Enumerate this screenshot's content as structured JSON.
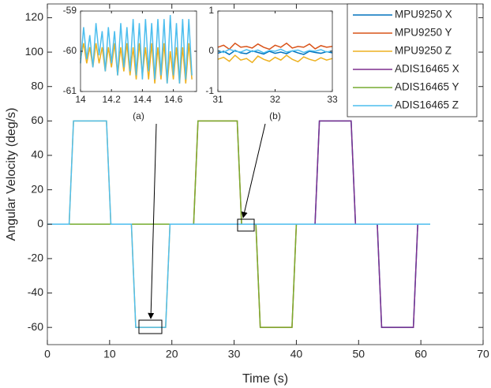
{
  "chart_data": [
    {
      "type": "line",
      "xlabel": "Time (s)",
      "ylabel": "Angular Velocity (deg/s)",
      "xlim": [
        0,
        70
      ],
      "ylim": [
        -70,
        128
      ],
      "xticks": [
        0,
        10,
        20,
        30,
        40,
        50,
        60,
        70
      ],
      "yticks": [
        -60,
        -40,
        -20,
        0,
        20,
        40,
        60,
        80,
        100,
        120
      ],
      "legend": "upper right",
      "x": [
        0,
        3.5,
        4.2,
        9.5,
        10.2,
        13.5,
        14.2,
        19,
        19.7,
        23.5,
        24.2,
        30.5,
        31.2,
        33.5,
        34.2,
        39.3,
        40,
        43,
        43.7,
        48.8,
        49.5,
        53,
        53.7,
        58.8,
        59.5,
        61.5
      ],
      "series": [
        {
          "name": "MPU9250 X",
          "color": "#0072bd",
          "values": [
            0,
            0,
            0,
            0,
            0,
            0,
            0,
            0,
            0,
            0,
            0,
            0,
            0,
            0,
            0,
            0,
            0,
            0,
            60,
            60,
            0,
            0,
            -60,
            -60,
            0,
            0
          ]
        },
        {
          "name": "MPU9250 Y",
          "color": "#d95319",
          "values": [
            0,
            0,
            0,
            0,
            0,
            0,
            0,
            0,
            0,
            0,
            60,
            60,
            0,
            0,
            -60,
            -60,
            0,
            0,
            0,
            0,
            0,
            0,
            0,
            0,
            0,
            0
          ]
        },
        {
          "name": "MPU9250 Z",
          "color": "#edb120",
          "values": [
            0,
            0,
            60,
            60,
            0,
            0,
            -60,
            -60,
            0,
            0,
            0,
            0,
            0,
            0,
            0,
            0,
            0,
            0,
            0,
            0,
            0,
            0,
            0,
            0,
            0,
            0
          ]
        },
        {
          "name": "ADIS16465 X",
          "color": "#7e2f8e",
          "values": [
            0,
            0,
            0,
            0,
            0,
            0,
            0,
            0,
            0,
            0,
            0,
            0,
            0,
            0,
            0,
            0,
            0,
            0,
            60,
            60,
            0,
            0,
            -60,
            -60,
            0,
            0
          ]
        },
        {
          "name": "ADIS16465 Y",
          "color": "#77ac30",
          "values": [
            0,
            0,
            0,
            0,
            0,
            0,
            0,
            0,
            0,
            0,
            60,
            60,
            0,
            0,
            -60,
            -60,
            0,
            0,
            0,
            0,
            0,
            0,
            0,
            0,
            0,
            0
          ]
        },
        {
          "name": "ADIS16465 Z",
          "color": "#4dbeee",
          "values": [
            0,
            0,
            60,
            60,
            0,
            0,
            -60,
            -60,
            0,
            0,
            0,
            0,
            0,
            0,
            0,
            0,
            0,
            0,
            0,
            0,
            0,
            0,
            0,
            0,
            0,
            0
          ]
        }
      ]
    },
    {
      "type": "line",
      "label": "(a)",
      "xlim": [
        14,
        14.75
      ],
      "ylim": [
        -61,
        -59
      ],
      "xticks": [
        14,
        14.2,
        14.4,
        14.6
      ],
      "yticks": [
        -61,
        -60,
        -59
      ],
      "x": [
        14,
        14.02,
        14.04,
        14.06,
        14.08,
        14.1,
        14.12,
        14.14,
        14.16,
        14.18,
        14.2,
        14.22,
        14.24,
        14.26,
        14.28,
        14.3,
        14.32,
        14.34,
        14.36,
        14.38,
        14.4,
        14.42,
        14.44,
        14.46,
        14.48,
        14.5,
        14.52,
        14.54,
        14.56,
        14.58,
        14.6,
        14.62,
        14.64,
        14.66,
        14.68,
        14.7,
        14.72
      ],
      "series": [
        {
          "color": "#edb120",
          "values": [
            -60.2,
            -59.8,
            -60.3,
            -59.9,
            -60.4,
            -59.8,
            -60.3,
            -59.9,
            -60.5,
            -59.9,
            -60.4,
            -59.8,
            -60.6,
            -59.9,
            -60.5,
            -59.8,
            -60.6,
            -59.9,
            -60.7,
            -59.8,
            -60.6,
            -59.9,
            -60.7,
            -59.8,
            -60.8,
            -59.9,
            -60.7,
            -59.8,
            -60.8,
            -60.0,
            -60.7,
            -59.9,
            -60.8,
            -59.9,
            -60.8,
            -59.8,
            -60.7
          ]
        },
        {
          "color": "#4dbeee",
          "values": [
            -60.3,
            -59.4,
            -60.2,
            -59.6,
            -60.4,
            -59.3,
            -60.1,
            -59.5,
            -60.5,
            -59.4,
            -60.3,
            -59.5,
            -60.6,
            -59.3,
            -60.4,
            -59.4,
            -60.5,
            -59.2,
            -60.6,
            -59.3,
            -60.7,
            -59.2,
            -60.5,
            -59.3,
            -60.7,
            -59.2,
            -60.6,
            -59.2,
            -60.8,
            -59.1,
            -60.6,
            -59.3,
            -60.8,
            -59.2,
            -60.7,
            -59.2,
            -60.6
          ]
        }
      ]
    },
    {
      "type": "line",
      "label": "(b)",
      "xlim": [
        31,
        33
      ],
      "ylim": [
        -1,
        1
      ],
      "xticks": [
        31,
        32,
        33
      ],
      "yticks": [
        -1,
        0,
        1
      ],
      "x": [
        31,
        31.1,
        31.2,
        31.3,
        31.4,
        31.5,
        31.6,
        31.7,
        31.8,
        31.9,
        32,
        32.1,
        32.2,
        32.3,
        32.4,
        32.5,
        32.6,
        32.7,
        32.8,
        32.9,
        33
      ],
      "series": [
        {
          "color": "#d95319",
          "values": [
            0.1,
            0.15,
            0.05,
            0.2,
            0.1,
            0.12,
            0.08,
            0.18,
            0.1,
            0.05,
            0.15,
            0.1,
            0.2,
            0.08,
            0.12,
            0.1,
            0.18,
            0.06,
            0.14,
            0.1,
            0.12
          ]
        },
        {
          "color": "#edb120",
          "values": [
            -0.2,
            -0.15,
            -0.25,
            -0.1,
            -0.22,
            -0.18,
            -0.28,
            -0.12,
            -0.2,
            -0.25,
            -0.15,
            -0.22,
            -0.1,
            -0.2,
            -0.26,
            -0.14,
            -0.2,
            -0.24,
            -0.16,
            -0.22,
            -0.18
          ]
        },
        {
          "color": "#0072bd",
          "values": [
            -0.05,
            0,
            -0.08,
            0.02,
            -0.04,
            -0.06,
            0.01,
            -0.03,
            -0.07,
            0,
            -0.05,
            -0.02,
            -0.06,
            0.01,
            -0.04,
            -0.08,
            0,
            -0.03,
            -0.05,
            -0.01,
            -0.04
          ]
        },
        {
          "color": "#4dbeee",
          "values": [
            0.02,
            -0.03,
            0.05,
            0,
            -0.02,
            0.04,
            -0.01,
            0.03,
            -0.04,
            0.02,
            0,
            0.05,
            -0.02,
            0.01,
            0.03,
            -0.03,
            0.02,
            0,
            0.04,
            -0.02,
            0.01
          ]
        }
      ]
    }
  ]
}
